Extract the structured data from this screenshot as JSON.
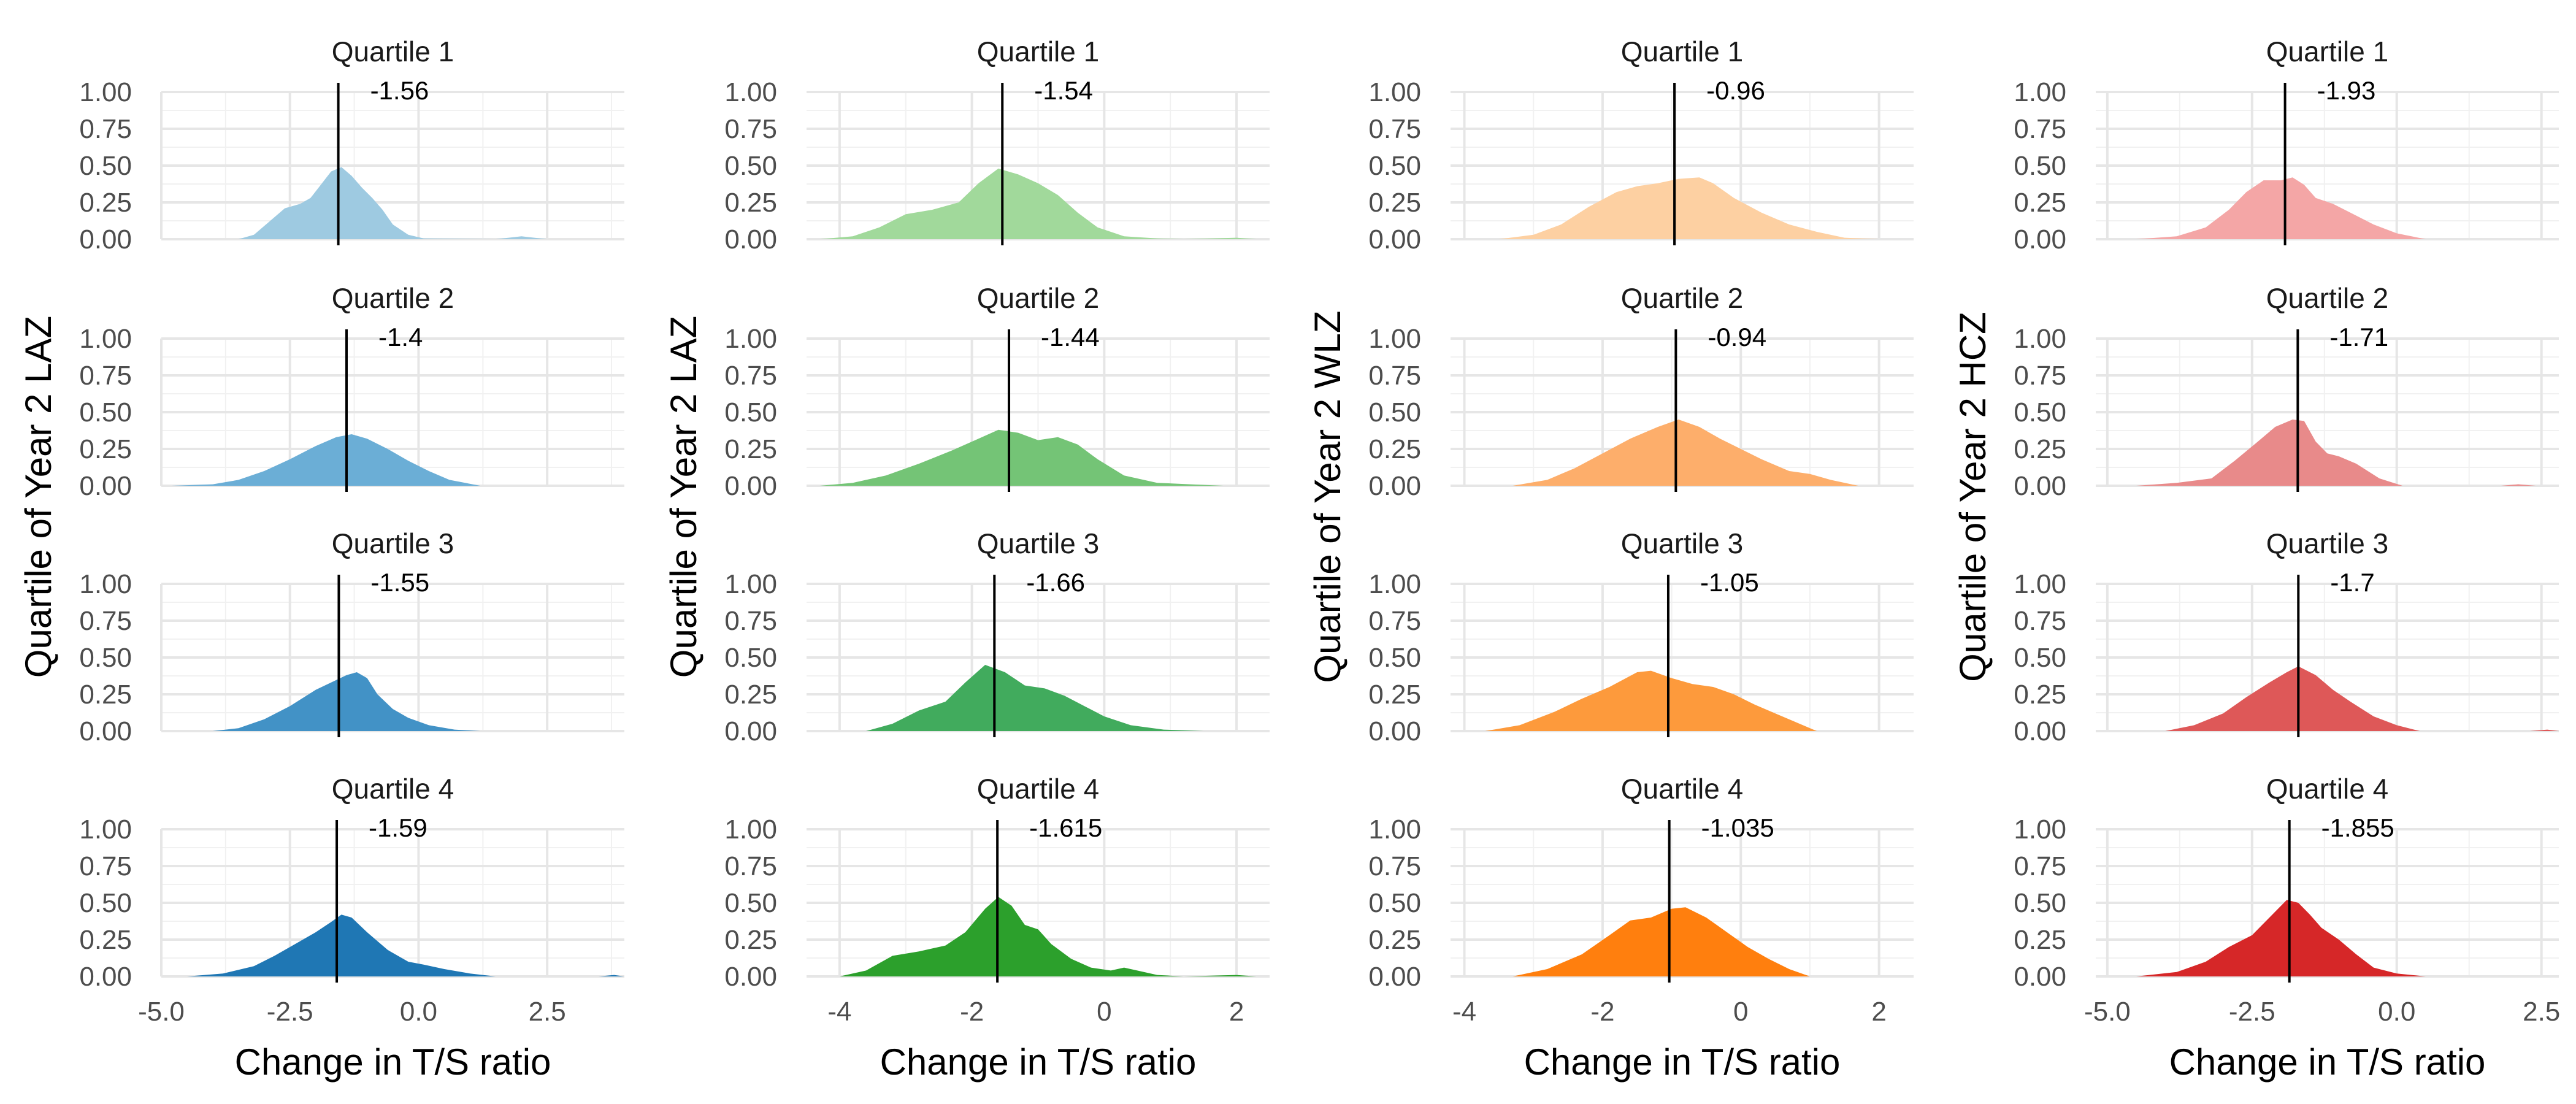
{
  "chart_data": [
    {
      "type": "area",
      "title": "",
      "xlabel": "Change in T/S ratio",
      "ylabel": "Quartile of Year 2 LAZ",
      "xlim": [
        -5.0,
        4.0
      ],
      "ylim": [
        0,
        1.0
      ],
      "x_ticks": [
        "-5.0",
        "-2.5",
        "0.0",
        "2.5"
      ],
      "y_ticks": [
        "0.00",
        "0.25",
        "0.50",
        "0.75",
        "1.00"
      ],
      "grid": true,
      "legend": "none",
      "panels": [
        {
          "title": "Quartile 1",
          "median": -1.56,
          "median_label": "-1.56",
          "color": "#9ecae1",
          "x": [
            -3.5,
            -3.2,
            -2.9,
            -2.6,
            -2.3,
            -2.1,
            -1.9,
            -1.7,
            -1.5,
            -1.3,
            -1.1,
            -0.9,
            -0.7,
            -0.5,
            -0.2,
            0.1,
            1.5,
            2.0,
            2.5
          ],
          "y": [
            0,
            0.03,
            0.12,
            0.21,
            0.24,
            0.28,
            0.37,
            0.46,
            0.49,
            0.43,
            0.35,
            0.28,
            0.2,
            0.1,
            0.03,
            0.005,
            0,
            0.02,
            0
          ]
        },
        {
          "title": "Quartile 2",
          "median": -1.4,
          "median_label": "-1.4",
          "color": "#6baed6",
          "x": [
            -4.8,
            -4.0,
            -3.5,
            -3.0,
            -2.5,
            -2.0,
            -1.6,
            -1.3,
            -1.0,
            -0.6,
            -0.2,
            0.2,
            0.6,
            1.2
          ],
          "y": [
            0,
            0.01,
            0.04,
            0.1,
            0.18,
            0.27,
            0.33,
            0.35,
            0.32,
            0.25,
            0.17,
            0.1,
            0.04,
            0
          ]
        },
        {
          "title": "Quartile 3",
          "median": -1.55,
          "median_label": "-1.55",
          "color": "#4292c6",
          "x": [
            -4.0,
            -3.5,
            -3.0,
            -2.5,
            -2.0,
            -1.7,
            -1.4,
            -1.2,
            -1.0,
            -0.8,
            -0.5,
            -0.2,
            0.2,
            0.7,
            1.2
          ],
          "y": [
            0,
            0.02,
            0.08,
            0.17,
            0.28,
            0.33,
            0.38,
            0.4,
            0.36,
            0.25,
            0.15,
            0.09,
            0.04,
            0.01,
            0
          ]
        },
        {
          "title": "Quartile 4",
          "median": -1.59,
          "median_label": "-1.59",
          "color": "#1f77b4",
          "x": [
            -4.5,
            -3.8,
            -3.2,
            -2.8,
            -2.4,
            -2.0,
            -1.7,
            -1.5,
            -1.3,
            -1.0,
            -0.6,
            -0.2,
            0.1,
            0.5,
            1.0,
            1.5,
            3.5,
            3.8,
            4.0
          ],
          "y": [
            0,
            0.02,
            0.07,
            0.14,
            0.22,
            0.3,
            0.37,
            0.42,
            0.4,
            0.3,
            0.18,
            0.1,
            0.08,
            0.05,
            0.02,
            0,
            0,
            0.01,
            0
          ]
        }
      ]
    },
    {
      "type": "area",
      "title": "",
      "xlabel": "Change in T/S ratio",
      "ylabel": "Quartile of Year 2 LAZ",
      "xlim": [
        -4.5,
        2.5
      ],
      "ylim": [
        0,
        1.0
      ],
      "x_ticks": [
        "-4",
        "-2",
        "0",
        "2"
      ],
      "y_ticks": [
        "0.00",
        "0.25",
        "0.50",
        "0.75",
        "1.00"
      ],
      "grid": true,
      "legend": "none",
      "panels": [
        {
          "title": "Quartile 1",
          "median": -1.54,
          "median_label": "-1.54",
          "color": "#a1d99b",
          "x": [
            -4.3,
            -3.8,
            -3.4,
            -3.0,
            -2.6,
            -2.2,
            -1.9,
            -1.6,
            -1.3,
            -1.0,
            -0.7,
            -0.4,
            -0.1,
            0.3,
            0.8,
            1.2,
            2.0,
            2.3
          ],
          "y": [
            0,
            0.02,
            0.08,
            0.17,
            0.2,
            0.25,
            0.38,
            0.48,
            0.44,
            0.38,
            0.3,
            0.18,
            0.08,
            0.02,
            0.005,
            0,
            0.01,
            0
          ]
        },
        {
          "title": "Quartile 2",
          "median": -1.44,
          "median_label": "-1.44",
          "color": "#74c476",
          "x": [
            -4.3,
            -3.8,
            -3.3,
            -2.8,
            -2.3,
            -1.9,
            -1.6,
            -1.3,
            -1.0,
            -0.7,
            -0.4,
            -0.1,
            0.3,
            0.8,
            1.3,
            1.8
          ],
          "y": [
            0,
            0.02,
            0.07,
            0.15,
            0.24,
            0.32,
            0.38,
            0.36,
            0.31,
            0.33,
            0.28,
            0.18,
            0.07,
            0.02,
            0.01,
            0
          ]
        },
        {
          "title": "Quartile 3",
          "median": -1.66,
          "median_label": "-1.66",
          "color": "#41ab5d",
          "x": [
            -3.6,
            -3.2,
            -2.8,
            -2.4,
            -2.1,
            -1.8,
            -1.5,
            -1.2,
            -0.9,
            -0.6,
            -0.3,
            0.0,
            0.4,
            0.9,
            1.5
          ],
          "y": [
            0,
            0.05,
            0.14,
            0.2,
            0.33,
            0.45,
            0.4,
            0.31,
            0.29,
            0.24,
            0.17,
            0.1,
            0.04,
            0.01,
            0
          ]
        },
        {
          "title": "Quartile 4",
          "median": -1.615,
          "median_label": "-1.615",
          "color": "#2ca02c",
          "x": [
            -4.0,
            -3.6,
            -3.2,
            -2.8,
            -2.4,
            -2.1,
            -1.8,
            -1.6,
            -1.4,
            -1.2,
            -1.0,
            -0.8,
            -0.5,
            -0.2,
            0.1,
            0.3,
            0.5,
            0.8,
            1.2,
            2.0,
            2.3
          ],
          "y": [
            0,
            0.04,
            0.14,
            0.17,
            0.21,
            0.3,
            0.46,
            0.54,
            0.48,
            0.35,
            0.32,
            0.22,
            0.12,
            0.06,
            0.04,
            0.06,
            0.04,
            0.01,
            0,
            0.01,
            0
          ]
        }
      ]
    },
    {
      "type": "area",
      "title": "",
      "xlabel": "Change in T/S ratio",
      "ylabel": "Quartile of Year 2 WLZ",
      "xlim": [
        -4.2,
        2.5
      ],
      "ylim": [
        0,
        1.0
      ],
      "x_ticks": [
        "-4",
        "-2",
        "0",
        "2"
      ],
      "y_ticks": [
        "0.00",
        "0.25",
        "0.50",
        "0.75",
        "1.00"
      ],
      "grid": true,
      "legend": "none",
      "panels": [
        {
          "title": "Quartile 1",
          "median": -0.96,
          "median_label": "-0.96",
          "color": "#fdd0a2",
          "x": [
            -3.5,
            -3.0,
            -2.6,
            -2.2,
            -1.8,
            -1.5,
            -1.2,
            -0.9,
            -0.6,
            -0.4,
            -0.1,
            0.3,
            0.7,
            1.1,
            1.5,
            2.0
          ],
          "y": [
            0,
            0.03,
            0.1,
            0.22,
            0.32,
            0.36,
            0.38,
            0.41,
            0.42,
            0.38,
            0.28,
            0.18,
            0.1,
            0.05,
            0.01,
            0
          ]
        },
        {
          "title": "Quartile 2",
          "median": -0.94,
          "median_label": "-0.94",
          "color": "#fdae6b",
          "x": [
            -3.3,
            -2.8,
            -2.4,
            -2.0,
            -1.6,
            -1.2,
            -0.9,
            -0.6,
            -0.3,
            0.0,
            0.3,
            0.7,
            1.0,
            1.3,
            1.7
          ],
          "y": [
            0,
            0.04,
            0.12,
            0.22,
            0.32,
            0.4,
            0.45,
            0.4,
            0.32,
            0.25,
            0.18,
            0.1,
            0.08,
            0.04,
            0
          ]
        },
        {
          "title": "Quartile 3",
          "median": -1.05,
          "median_label": "-1.05",
          "color": "#fd9a3c",
          "x": [
            -3.7,
            -3.2,
            -2.7,
            -2.3,
            -1.9,
            -1.5,
            -1.3,
            -1.0,
            -0.7,
            -0.4,
            -0.1,
            0.2,
            0.5,
            0.8,
            1.1
          ],
          "y": [
            0,
            0.04,
            0.13,
            0.22,
            0.3,
            0.4,
            0.41,
            0.36,
            0.32,
            0.3,
            0.25,
            0.18,
            0.12,
            0.06,
            0
          ]
        },
        {
          "title": "Quartile 4",
          "median": -1.035,
          "median_label": "-1.035",
          "color": "#ff7f0e",
          "x": [
            -3.3,
            -2.8,
            -2.3,
            -1.9,
            -1.6,
            -1.3,
            -1.0,
            -0.8,
            -0.5,
            -0.2,
            0.1,
            0.4,
            0.7,
            1.0
          ],
          "y": [
            0,
            0.05,
            0.15,
            0.28,
            0.38,
            0.4,
            0.46,
            0.47,
            0.4,
            0.3,
            0.2,
            0.12,
            0.05,
            0
          ]
        }
      ]
    },
    {
      "type": "area",
      "title": "",
      "xlabel": "Change in T/S ratio",
      "ylabel": "Quartile of Year 2 HCZ",
      "xlim": [
        -5.2,
        2.8
      ],
      "ylim": [
        0,
        1.0
      ],
      "x_ticks": [
        "-5.0",
        "-2.5",
        "0.0",
        "2.5"
      ],
      "y_ticks": [
        "0.00",
        "0.25",
        "0.50",
        "0.75",
        "1.00"
      ],
      "grid": true,
      "legend": "none",
      "panels": [
        {
          "title": "Quartile 1",
          "median": -1.93,
          "median_label": "-1.93",
          "color": "#f4a6a6",
          "x": [
            -4.5,
            -3.8,
            -3.3,
            -2.9,
            -2.6,
            -2.3,
            -2.0,
            -1.8,
            -1.6,
            -1.4,
            -1.1,
            -0.8,
            -0.4,
            0.0,
            0.5
          ],
          "y": [
            0,
            0.02,
            0.08,
            0.2,
            0.32,
            0.4,
            0.4,
            0.42,
            0.37,
            0.28,
            0.24,
            0.18,
            0.1,
            0.04,
            0
          ]
        },
        {
          "title": "Quartile 2",
          "median": -1.71,
          "median_label": "-1.71",
          "color": "#e88a8a",
          "x": [
            -4.5,
            -3.8,
            -3.2,
            -2.8,
            -2.4,
            -2.1,
            -1.8,
            -1.6,
            -1.4,
            -1.2,
            -1.0,
            -0.7,
            -0.3,
            0.1,
            1.8,
            2.1,
            2.4
          ],
          "y": [
            0,
            0.02,
            0.05,
            0.17,
            0.3,
            0.4,
            0.45,
            0.44,
            0.3,
            0.22,
            0.2,
            0.15,
            0.05,
            0,
            0,
            0.01,
            0
          ]
        },
        {
          "title": "Quartile 3",
          "median": -1.7,
          "median_label": "-1.7",
          "color": "#de5858",
          "x": [
            -4.0,
            -3.5,
            -3.0,
            -2.6,
            -2.2,
            -1.9,
            -1.7,
            -1.4,
            -1.1,
            -0.8,
            -0.4,
            0.0,
            0.4,
            2.3,
            2.6,
            2.8
          ],
          "y": [
            0,
            0.04,
            0.12,
            0.23,
            0.33,
            0.4,
            0.44,
            0.38,
            0.28,
            0.2,
            0.1,
            0.04,
            0,
            0,
            0.01,
            0
          ]
        },
        {
          "title": "Quartile 4",
          "median": -1.855,
          "median_label": "-1.855",
          "color": "#d62728",
          "x": [
            -4.5,
            -3.8,
            -3.3,
            -2.9,
            -2.5,
            -2.2,
            -1.9,
            -1.7,
            -1.5,
            -1.3,
            -1.0,
            -0.7,
            -0.4,
            0.0,
            0.5
          ],
          "y": [
            0,
            0.03,
            0.1,
            0.2,
            0.28,
            0.4,
            0.52,
            0.5,
            0.42,
            0.33,
            0.25,
            0.15,
            0.06,
            0.02,
            0
          ]
        }
      ]
    }
  ]
}
